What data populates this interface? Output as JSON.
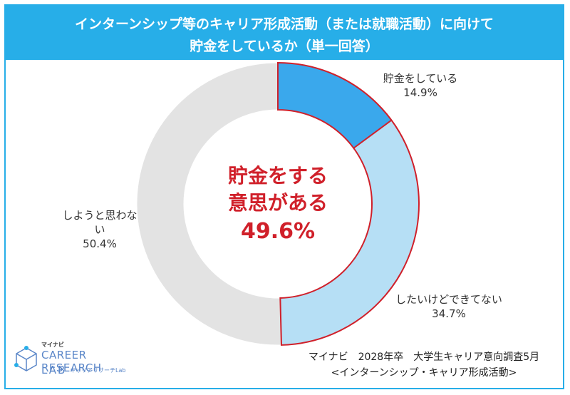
{
  "title": {
    "line1": "インターンシップ等のキャリア形成活動（または就職活動）に向けて",
    "line2": "貯金をしているか（単一回答）"
  },
  "center_text": {
    "line1": "貯金をする",
    "line2": "意思がある",
    "value": "49.6%"
  },
  "source": {
    "line1": "マイナビ　2028年卒　大学生キャリア意向調査5月",
    "line2": "<インターンシップ・キャリア形成活動>"
  },
  "logo": {
    "small": "マイナビ",
    "line1": "CAREER RESEARCH",
    "line2": "LAB",
    "sub": "キャリアリサーチLab"
  },
  "colors": {
    "header": "#27aee8",
    "saving": "#3aa8ec",
    "want": "#b6dff5",
    "no": "#e3e3e3",
    "highlight": "#d0202a"
  },
  "chart_data": {
    "type": "pie",
    "categories": [
      "貯金をしている",
      "したいけどできてない",
      "しようと思わない"
    ],
    "values": [
      14.9,
      34.7,
      50.4
    ],
    "value_labels": [
      "14.9%",
      "34.7%",
      "50.4%"
    ]
  },
  "slice_labels": [
    {
      "name_lines": [
        "貯金をしている"
      ],
      "value": "14.9%"
    },
    {
      "name_lines": [
        "したいけどできてない"
      ],
      "value": "34.7%"
    },
    {
      "name_lines": [
        "しようと思わな",
        "い"
      ],
      "value": "50.4%"
    }
  ]
}
